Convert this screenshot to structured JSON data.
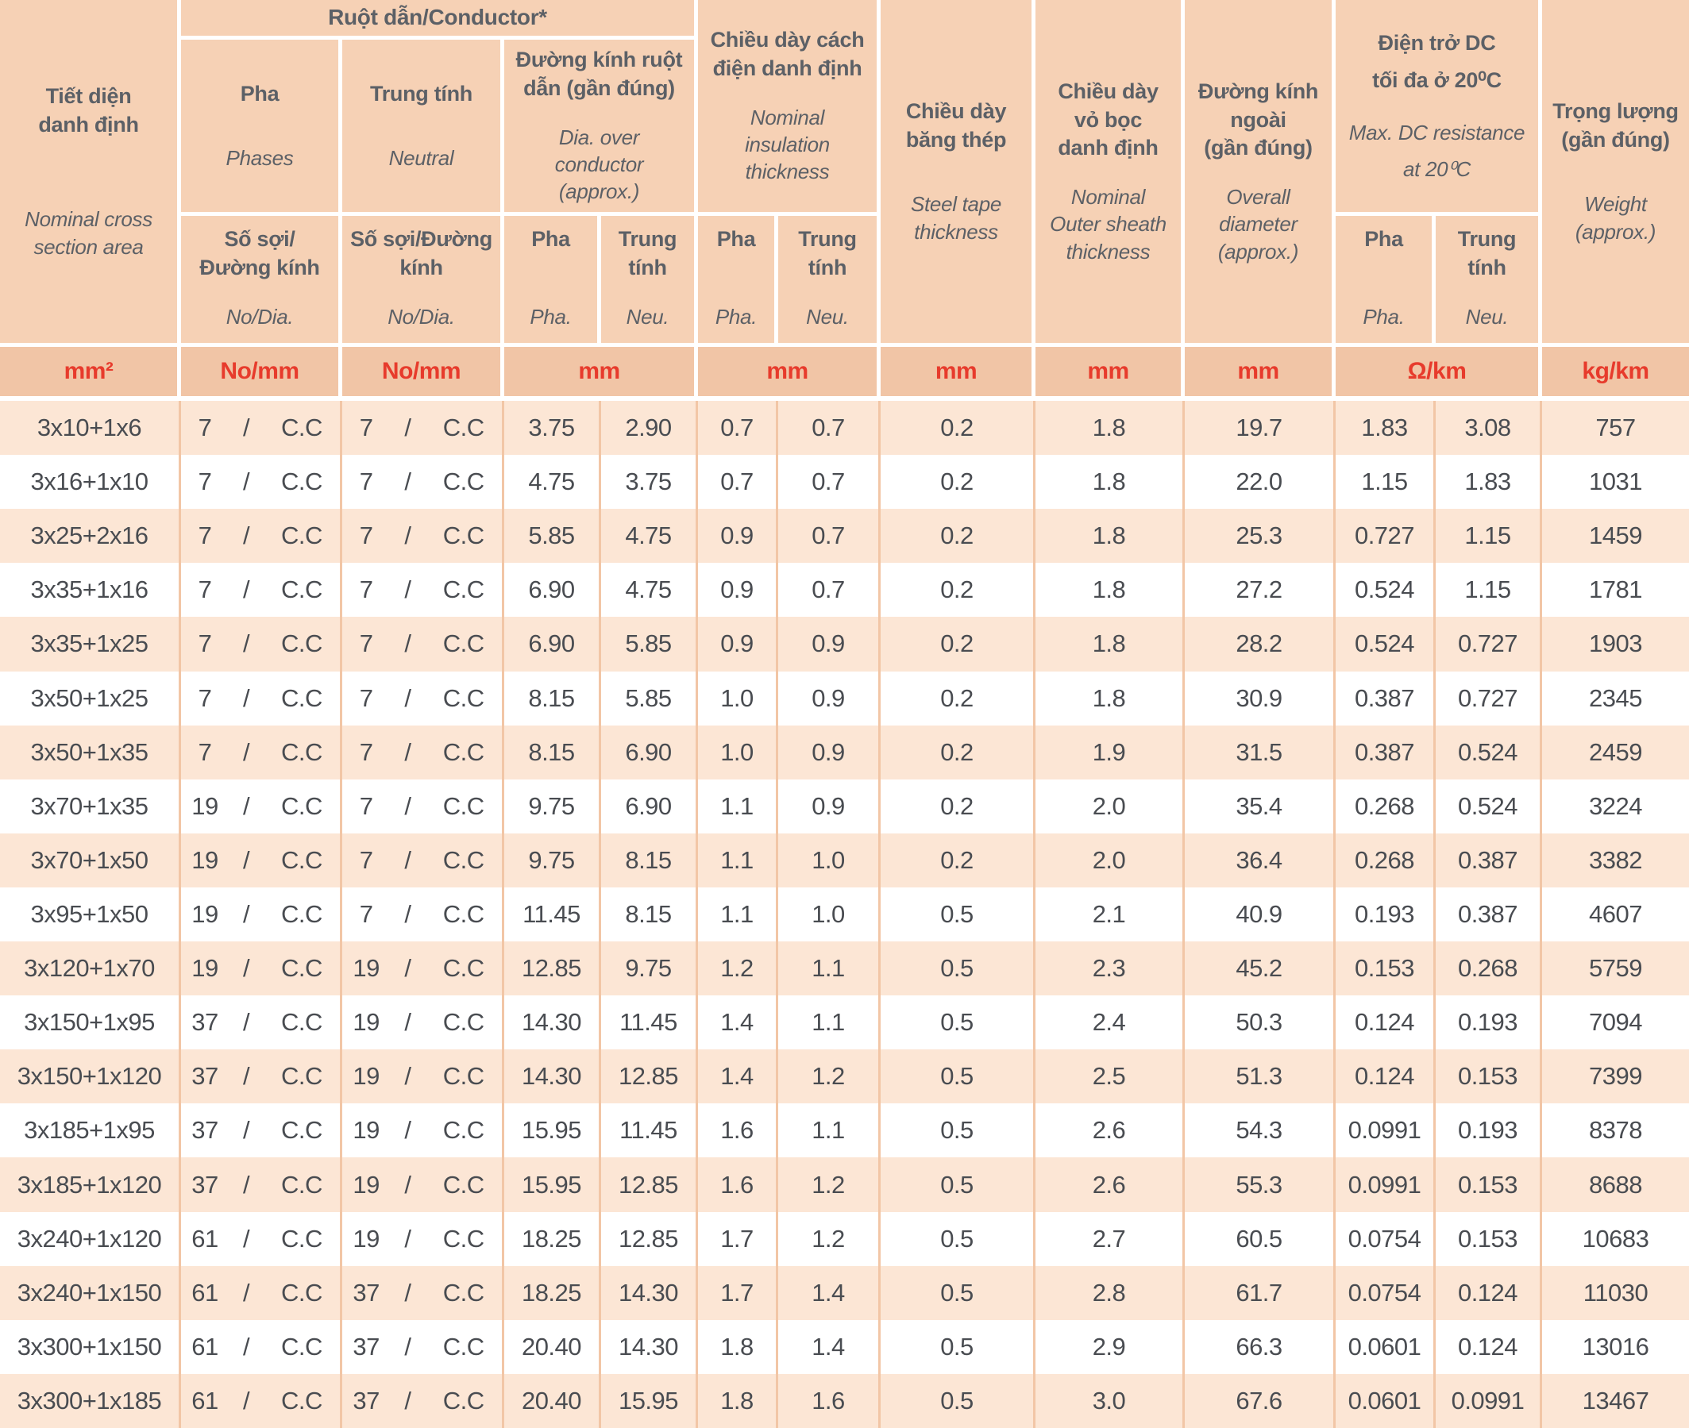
{
  "table": {
    "header": {
      "section_area": {
        "vi": "Tiết diện\ndanh định",
        "en": "Nominal cross\nsection area"
      },
      "conductor_band": "Ruột dẫn/Conductor*",
      "phases": {
        "vi": "Pha",
        "en": "Phases"
      },
      "neutral": {
        "vi": "Trung tính",
        "en": "Neutral"
      },
      "dia_group": {
        "vi": "Đường kính ruột\ndẫn (gần đúng)",
        "en": "Dia. over\nconductor\n(approx.)"
      },
      "ins_group": {
        "vi": "Chiều dày cách\nđiện danh định",
        "en": "Nominal\ninsulation\nthickness"
      },
      "steel_tape": {
        "vi": "Chiều dày\nbăng thép",
        "en": "Steel tape\nthickness"
      },
      "outer_sheath": {
        "vi": "Chiều dày\nvỏ bọc\ndanh định",
        "en": "Nominal\nOuter sheath\nthickness"
      },
      "overall_dia": {
        "vi": "Đường kính\nngoài\n(gần đúng)",
        "en": "Overall\ndiameter\n(approx.)"
      },
      "dc_group": {
        "vi": "Điện trở DC\ntối đa ở 20⁰C",
        "en": "Max. DC resistance\nat  20⁰C"
      },
      "weight": {
        "vi": "Trọng lượng\n(gần đúng)",
        "en": "Weight\n(approx.)"
      },
      "sub": {
        "phases_nodia": {
          "vi": "Số sợi/\nĐường kính",
          "en": "No/Dia."
        },
        "neutral_nodia": {
          "vi": "Số sợi/Đường\nkính",
          "en": "No/Dia."
        },
        "pha": {
          "vi": "Pha",
          "en": "Pha."
        },
        "trung_tinh": {
          "vi": "Trung\ntính",
          "en": "Neu."
        }
      }
    },
    "units": {
      "area": "mm²",
      "phases": "No/mm",
      "neutral": "No/mm",
      "dia": "mm",
      "insulation": "mm",
      "steel_tape": "mm",
      "outer_sheath": "mm",
      "overall_dia": "mm",
      "dc_resistance": "Ω/km",
      "weight": "kg/km"
    },
    "conductor_sep": "/",
    "rows": [
      [
        "3x10+1x6",
        "7",
        "C.C",
        "7",
        "C.C",
        "3.75",
        "2.90",
        "0.7",
        "0.7",
        "0.2",
        "1.8",
        "19.7",
        "1.83",
        "3.08",
        "757"
      ],
      [
        "3x16+1x10",
        "7",
        "C.C",
        "7",
        "C.C",
        "4.75",
        "3.75",
        "0.7",
        "0.7",
        "0.2",
        "1.8",
        "22.0",
        "1.15",
        "1.83",
        "1031"
      ],
      [
        "3x25+2x16",
        "7",
        "C.C",
        "7",
        "C.C",
        "5.85",
        "4.75",
        "0.9",
        "0.7",
        "0.2",
        "1.8",
        "25.3",
        "0.727",
        "1.15",
        "1459"
      ],
      [
        "3x35+1x16",
        "7",
        "C.C",
        "7",
        "C.C",
        "6.90",
        "4.75",
        "0.9",
        "0.7",
        "0.2",
        "1.8",
        "27.2",
        "0.524",
        "1.15",
        "1781"
      ],
      [
        "3x35+1x25",
        "7",
        "C.C",
        "7",
        "C.C",
        "6.90",
        "5.85",
        "0.9",
        "0.9",
        "0.2",
        "1.8",
        "28.2",
        "0.524",
        "0.727",
        "1903"
      ],
      [
        "3x50+1x25",
        "7",
        "C.C",
        "7",
        "C.C",
        "8.15",
        "5.85",
        "1.0",
        "0.9",
        "0.2",
        "1.8",
        "30.9",
        "0.387",
        "0.727",
        "2345"
      ],
      [
        "3x50+1x35",
        "7",
        "C.C",
        "7",
        "C.C",
        "8.15",
        "6.90",
        "1.0",
        "0.9",
        "0.2",
        "1.9",
        "31.5",
        "0.387",
        "0.524",
        "2459"
      ],
      [
        "3x70+1x35",
        "19",
        "C.C",
        "7",
        "C.C",
        "9.75",
        "6.90",
        "1.1",
        "0.9",
        "0.2",
        "2.0",
        "35.4",
        "0.268",
        "0.524",
        "3224"
      ],
      [
        "3x70+1x50",
        "19",
        "C.C",
        "7",
        "C.C",
        "9.75",
        "8.15",
        "1.1",
        "1.0",
        "0.2",
        "2.0",
        "36.4",
        "0.268",
        "0.387",
        "3382"
      ],
      [
        "3x95+1x50",
        "19",
        "C.C",
        "7",
        "C.C",
        "11.45",
        "8.15",
        "1.1",
        "1.0",
        "0.5",
        "2.1",
        "40.9",
        "0.193",
        "0.387",
        "4607"
      ],
      [
        "3x120+1x70",
        "19",
        "C.C",
        "19",
        "C.C",
        "12.85",
        "9.75",
        "1.2",
        "1.1",
        "0.5",
        "2.3",
        "45.2",
        "0.153",
        "0.268",
        "5759"
      ],
      [
        "3x150+1x95",
        "37",
        "C.C",
        "19",
        "C.C",
        "14.30",
        "11.45",
        "1.4",
        "1.1",
        "0.5",
        "2.4",
        "50.3",
        "0.124",
        "0.193",
        "7094"
      ],
      [
        "3x150+1x120",
        "37",
        "C.C",
        "19",
        "C.C",
        "14.30",
        "12.85",
        "1.4",
        "1.2",
        "0.5",
        "2.5",
        "51.3",
        "0.124",
        "0.153",
        "7399"
      ],
      [
        "3x185+1x95",
        "37",
        "C.C",
        "19",
        "C.C",
        "15.95",
        "11.45",
        "1.6",
        "1.1",
        "0.5",
        "2.6",
        "54.3",
        "0.0991",
        "0.193",
        "8378"
      ],
      [
        "3x185+1x120",
        "37",
        "C.C",
        "19",
        "C.C",
        "15.95",
        "12.85",
        "1.6",
        "1.2",
        "0.5",
        "2.6",
        "55.3",
        "0.0991",
        "0.153",
        "8688"
      ],
      [
        "3x240+1x120",
        "61",
        "C.C",
        "19",
        "C.C",
        "18.25",
        "12.85",
        "1.7",
        "1.2",
        "0.5",
        "2.7",
        "60.5",
        "0.0754",
        "0.153",
        "10683"
      ],
      [
        "3x240+1x150",
        "61",
        "C.C",
        "37",
        "C.C",
        "18.25",
        "14.30",
        "1.7",
        "1.4",
        "0.5",
        "2.8",
        "61.7",
        "0.0754",
        "0.124",
        "11030"
      ],
      [
        "3x300+1x150",
        "61",
        "C.C",
        "37",
        "C.C",
        "20.40",
        "14.30",
        "1.8",
        "1.4",
        "0.5",
        "2.9",
        "66.3",
        "0.0601",
        "0.124",
        "13016"
      ],
      [
        "3x300+1x185",
        "61",
        "C.C",
        "37",
        "C.C",
        "20.40",
        "15.95",
        "1.8",
        "1.6",
        "0.5",
        "3.0",
        "67.6",
        "0.0601",
        "0.0991",
        "13467"
      ]
    ]
  },
  "colors": {
    "header_bg": "#f6d1b5",
    "unit_row_bg": "#f1c5a6",
    "row_odd_bg": "#fce6d5",
    "row_even_bg": "#ffffff",
    "cell_separator": "#f2c6a6",
    "header_text": "#5c6066",
    "data_text": "#494c51",
    "unit_text_red": "#e73b2c"
  }
}
